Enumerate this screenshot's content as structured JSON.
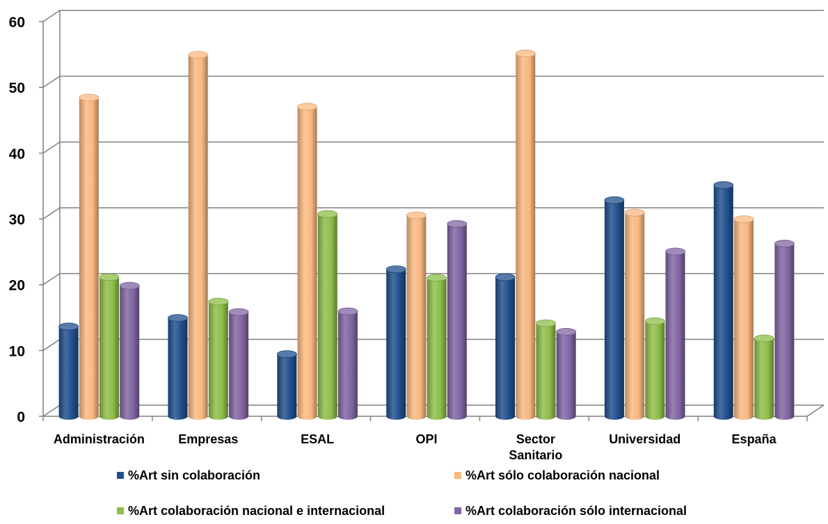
{
  "chart_data": {
    "type": "bar",
    "title": "",
    "xlabel": "",
    "ylabel": "",
    "ylim": [
      0,
      60
    ],
    "yticks": [
      0,
      10,
      20,
      30,
      40,
      50,
      60
    ],
    "grid": true,
    "legend_position": "bottom",
    "categories": [
      [
        "Administración"
      ],
      [
        "Empresas"
      ],
      [
        "ESAL"
      ],
      [
        "OPI"
      ],
      [
        "Sector",
        "Sanitario"
      ],
      [
        "Universidad"
      ],
      [
        "España"
      ]
    ],
    "series": [
      {
        "name": "%Art sin colaboración",
        "color": "#1f4e8c",
        "values": [
          12.8,
          14.1,
          8.6,
          21.5,
          20.3,
          32.0,
          34.3
        ]
      },
      {
        "name": "%Art sólo colaboración nacional",
        "color": "#f9b87f",
        "values": [
          47.6,
          54.1,
          46.2,
          29.7,
          54.3,
          30.1,
          29.1
        ]
      },
      {
        "name": "%Art colaboración nacional e internacional",
        "color": "#8dbd48",
        "values": [
          20.3,
          16.6,
          29.9,
          20.2,
          13.3,
          13.6,
          11.0
        ]
      },
      {
        "name": "%Art colaboración sólo internacional",
        "color": "#8064a2",
        "values": [
          19.0,
          15.0,
          15.1,
          28.4,
          12.0,
          24.2,
          25.4
        ]
      }
    ]
  }
}
